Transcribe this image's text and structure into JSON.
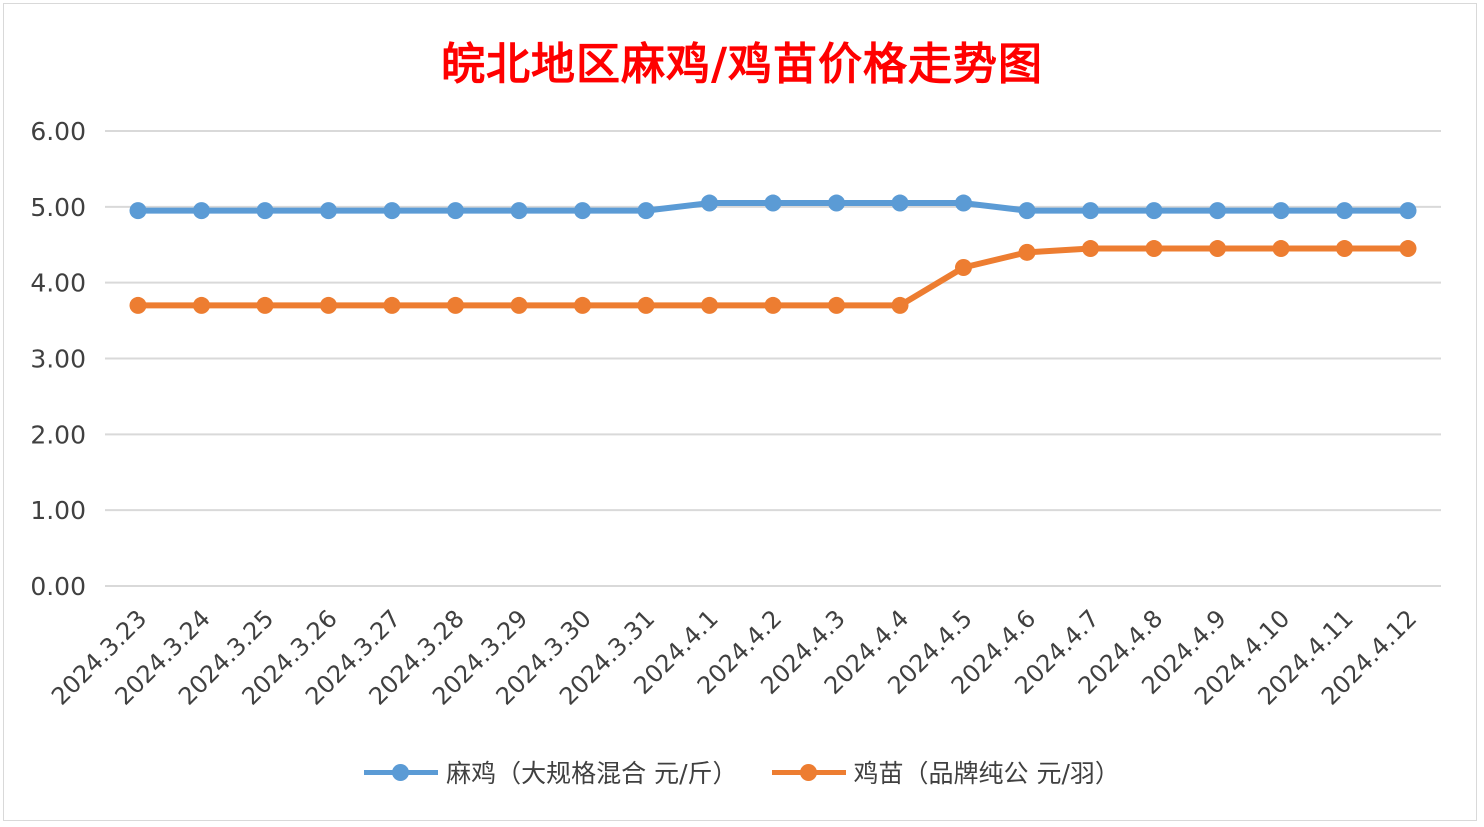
{
  "chart_data": {
    "type": "line",
    "title": "皖北地区麻鸡/鸡苗价格走势图",
    "categories": [
      "2024.3.23",
      "2024.3.24",
      "2024.3.25",
      "2024.3.26",
      "2024.3.27",
      "2024.3.28",
      "2024.3.29",
      "2024.3.30",
      "2024.3.31",
      "2024.4.1",
      "2024.4.2",
      "2024.4.3",
      "2024.4.4",
      "2024.4.5",
      "2024.4.6",
      "2024.4.7",
      "2024.4.8",
      "2024.4.9",
      "2024.4.10",
      "2024.4.11",
      "2024.4.12"
    ],
    "series": [
      {
        "name": "麻鸡（大规格混合 元/斤）",
        "color": "#5b9bd5",
        "values": [
          4.95,
          4.95,
          4.95,
          4.95,
          4.95,
          4.95,
          4.95,
          4.95,
          4.95,
          5.05,
          5.05,
          5.05,
          5.05,
          5.05,
          4.95,
          4.95,
          4.95,
          4.95,
          4.95,
          4.95,
          4.95
        ]
      },
      {
        "name": "鸡苗（品牌纯公 元/羽）",
        "color": "#ed7d31",
        "values": [
          3.7,
          3.7,
          3.7,
          3.7,
          3.7,
          3.7,
          3.7,
          3.7,
          3.7,
          3.7,
          3.7,
          3.7,
          3.7,
          4.2,
          4.4,
          4.45,
          4.45,
          4.45,
          4.45,
          4.45,
          4.45
        ]
      }
    ],
    "ylim": [
      0,
      6
    ],
    "yticks": [
      "0.00",
      "1.00",
      "2.00",
      "3.00",
      "4.00",
      "5.00",
      "6.00"
    ],
    "xlabel": "",
    "ylabel": "",
    "grid": true,
    "legend": "bottom",
    "title_color": "#ff0000"
  }
}
